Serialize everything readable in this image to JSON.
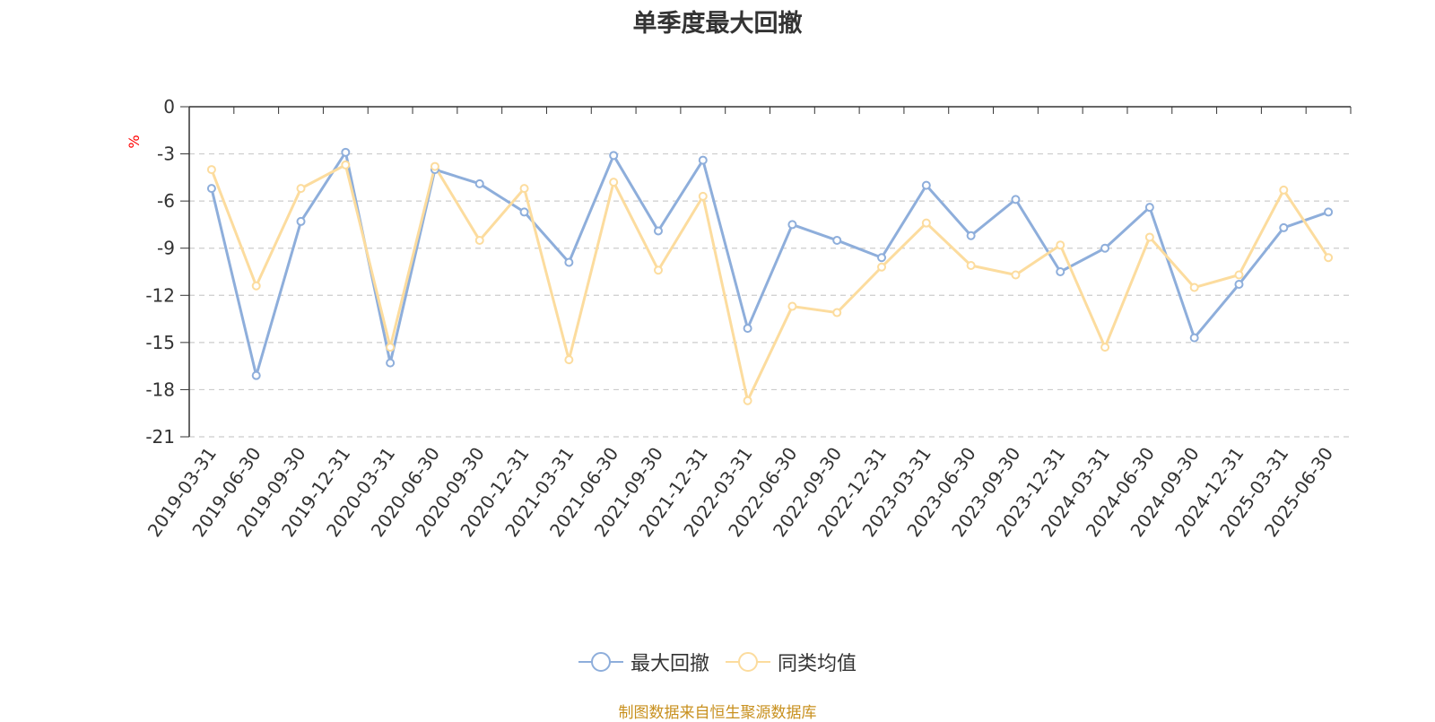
{
  "colors": {
    "series1": "#8eaedb",
    "series2": "#fcdc9e",
    "axis": "#333333",
    "grid": "#cccccc",
    "unit": "#ff0000",
    "source": "#c8901e"
  },
  "source_text": "制图数据来自恒生聚源数据库",
  "chart_data": {
    "type": "line",
    "title": "单季度最大回撤",
    "ylabel": "%",
    "ylim": [
      -21,
      0
    ],
    "yticks": [
      0,
      -3,
      -6,
      -9,
      -12,
      -15,
      -18,
      -21
    ],
    "grid": true,
    "legend_position": "bottom-center",
    "categories": [
      "2019-03-31",
      "2019-06-30",
      "2019-09-30",
      "2019-12-31",
      "2020-03-31",
      "2020-06-30",
      "2020-09-30",
      "2020-12-31",
      "2021-03-31",
      "2021-06-30",
      "2021-09-30",
      "2021-12-31",
      "2022-03-31",
      "2022-06-30",
      "2022-09-30",
      "2022-12-31",
      "2023-03-31",
      "2023-06-30",
      "2023-09-30",
      "2023-12-31",
      "2024-03-31",
      "2024-06-30",
      "2024-09-30",
      "2024-12-31",
      "2025-03-31",
      "2025-06-30"
    ],
    "series": [
      {
        "name": "最大回撤",
        "values": [
          -5.2,
          -17.1,
          -7.3,
          -2.9,
          -16.3,
          -4.0,
          -4.9,
          -6.7,
          -9.9,
          -3.1,
          -7.9,
          -3.4,
          -14.1,
          -7.5,
          -8.5,
          -9.6,
          -5.0,
          -8.2,
          -5.9,
          -10.5,
          -9.0,
          -6.4,
          -14.7,
          -11.3,
          -7.7,
          -6.7
        ]
      },
      {
        "name": "同类均值",
        "values": [
          -4.0,
          -11.4,
          -5.2,
          -3.7,
          -15.3,
          -3.8,
          -8.5,
          -5.2,
          -16.1,
          -4.8,
          -10.4,
          -5.7,
          -18.7,
          -12.7,
          -13.1,
          -10.2,
          -7.4,
          -10.1,
          -10.7,
          -8.8,
          -15.3,
          -8.3,
          -11.5,
          -10.7,
          -5.3,
          -9.6
        ]
      }
    ]
  }
}
